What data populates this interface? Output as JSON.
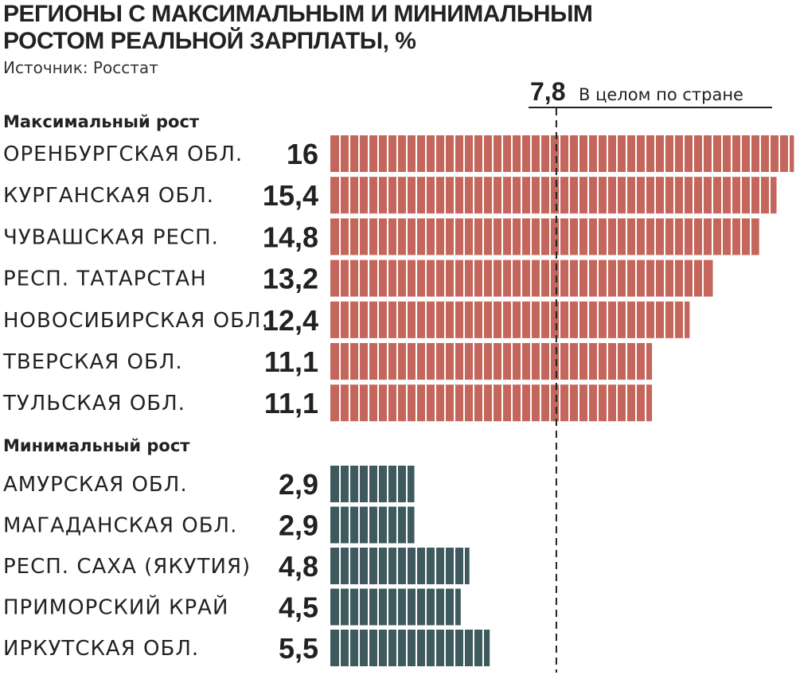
{
  "title_line1": "РЕГИОНЫ С МАКСИМАЛЬНЫМ И МИНИМАЛЬНЫМ",
  "title_line2": "РОСТОМ РЕАЛЬНОЙ ЗАРПЛАТЫ, %",
  "source": "Источник: Росстат",
  "colors": {
    "max_bar": "#c4665c",
    "min_bar": "#3f5a5e"
  },
  "chart_data": {
    "type": "bar",
    "orientation": "horizontal",
    "reference": {
      "value": 7.8,
      "value_label": "7,8",
      "label": "В целом по стране"
    },
    "groups": [
      {
        "name": "Максимальный рост",
        "color": "#c4665c",
        "categories": [
          "ОРЕНБУРГСКАЯ ОБЛ.",
          "КУРГАНСКАЯ ОБЛ.",
          "ЧУВАШСКАЯ РЕСП.",
          "РЕСП. ТАТАРСТАН",
          "НОВОСИБИРСКАЯ ОБЛ.",
          "ТВЕРСКАЯ ОБЛ.",
          "ТУЛЬСКАЯ ОБЛ."
        ],
        "values": [
          16,
          15.4,
          14.8,
          13.2,
          12.4,
          11.1,
          11.1
        ],
        "value_labels": [
          "16",
          "15,4",
          "14,8",
          "13,2",
          "12,4",
          "11,1",
          "11,1"
        ]
      },
      {
        "name": "Минимальный рост",
        "color": "#3f5a5e",
        "categories": [
          "АМУРСКАЯ ОБЛ.",
          "МАГАДАНСКАЯ ОБЛ.",
          "РЕСП. САХА (ЯКУТИЯ)",
          "ПРИМОРСКИЙ КРАЙ",
          "ИРКУТСКАЯ ОБЛ."
        ],
        "values": [
          2.9,
          2.9,
          4.8,
          4.5,
          5.5
        ],
        "value_labels": [
          "2,9",
          "2,9",
          "4,8",
          "4,5",
          "5,5"
        ]
      }
    ]
  }
}
